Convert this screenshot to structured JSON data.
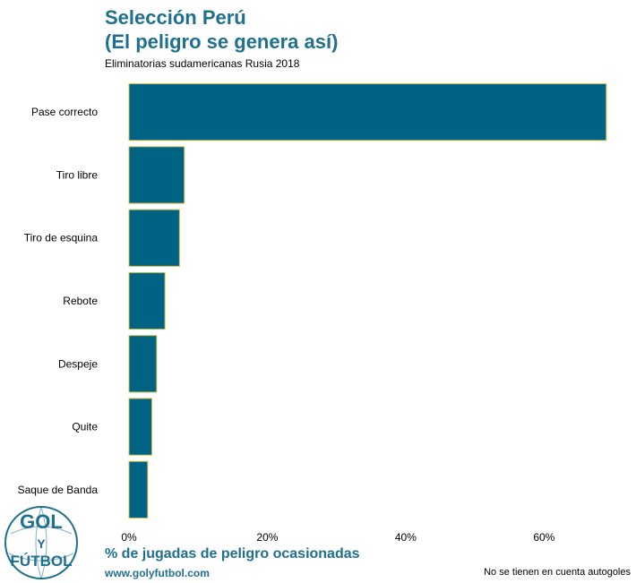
{
  "header": {
    "title_line1": "Selección Perú",
    "title_line2": "(El peligro se genera así)",
    "subtitle": "Eliminatorias sudamericanas Rusia 2018"
  },
  "footer": {
    "website": "www.golyfutbol.com",
    "note": "No se tienen en cuenta autogoles"
  },
  "logo": {
    "line1": "GOL",
    "middle": "Y",
    "line2": "FÚTBOL"
  },
  "colors": {
    "bar_fill": "#006384",
    "bar_border": "#d4c24a",
    "accent": "#1f6f8f",
    "text": "#000000"
  },
  "chart_data": {
    "type": "bar",
    "orientation": "horizontal",
    "categories": [
      "Pase correcto",
      "Tiro libre",
      "Tiro de esquina",
      "Rebote",
      "Despeje",
      "Quite",
      "Saque de Banda"
    ],
    "values": [
      69,
      8,
      7.3,
      5.2,
      4,
      3.3,
      2.7
    ],
    "xlabel": "% de jugadas de peligro ocasionadas",
    "ylabel": "",
    "xlim": [
      0,
      72
    ],
    "xticks": [
      0,
      20,
      40,
      60
    ],
    "xtick_labels": [
      "0%",
      "20%",
      "40%",
      "60%"
    ],
    "grid": false
  }
}
